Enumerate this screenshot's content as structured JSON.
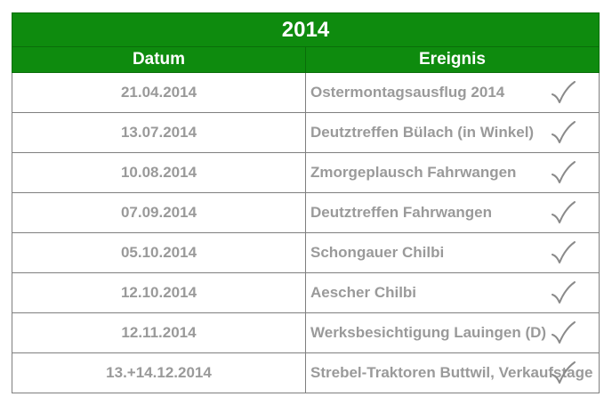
{
  "table": {
    "year": "2014",
    "headers": {
      "date": "Datum",
      "event": "Ereignis"
    },
    "rows": [
      {
        "date": "21.04.2014",
        "event": "Ostermontagsausflug 2014",
        "status_icon": "checkmark-icon"
      },
      {
        "date": "13.07.2014",
        "event": "Deutztreffen Bülach (in Winkel)",
        "status_icon": "checkmark-icon"
      },
      {
        "date": "10.08.2014",
        "event": "Zmorgeplausch Fahrwangen",
        "status_icon": "checkmark-icon"
      },
      {
        "date": "07.09.2014",
        "event": "Deutztreffen Fahrwangen",
        "status_icon": "checkmark-icon"
      },
      {
        "date": "05.10.2014",
        "event": "Schongauer Chilbi",
        "status_icon": "checkmark-icon"
      },
      {
        "date": "12.10.2014",
        "event": "Aescher Chilbi",
        "status_icon": "checkmark-icon"
      },
      {
        "date": "12.11.2014",
        "event": "Werksbesichtigung  Lauingen (D)",
        "status_icon": "checkmark-icon"
      },
      {
        "date": "13.+14.12.2014",
        "event": "Strebel-Traktoren Buttwil, Verkaufstage",
        "status_icon": "checkmark-icon"
      }
    ]
  },
  "colors": {
    "header_green": "#0e8b0e",
    "header_text": "#ffffff",
    "row_text": "#9a9a9a",
    "grid": "#7f7f7f",
    "check": "#8a8a8a"
  }
}
